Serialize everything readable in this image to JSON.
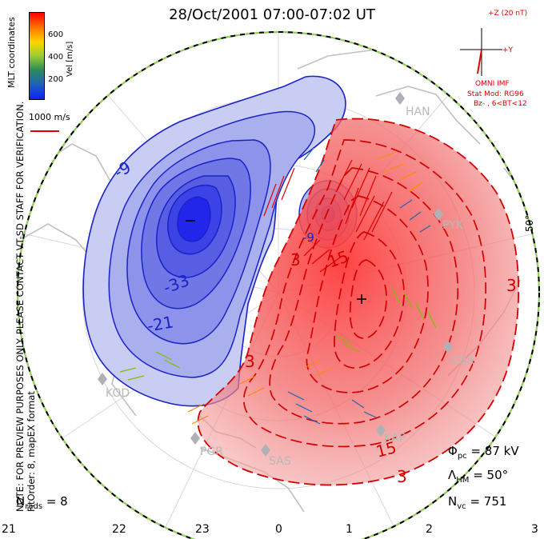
{
  "title": "28/Oct/2001 07:00-07:02 UT",
  "colorbar": {
    "label": "Vel [m/s]",
    "ticks": [
      "600",
      "400",
      "200"
    ],
    "colors": [
      "#ff0000",
      "#ff7a00",
      "#ffd400",
      "#9acd32",
      "#2e8b57",
      "#1e64b4",
      "#1020ff"
    ]
  },
  "scale_label": "1000 m/s",
  "imf": {
    "z_label": "+Z (20 nT)",
    "y_label": "+Y",
    "source": "OMNI IMF",
    "model": "Stat Mod: RG96",
    "condition": "Bz- , 6<BT<12"
  },
  "side_note": [
    "NOTE: FOR PREVIEW PURPOSES ONLY. PLEASE CONTACT VT-SD STAFF FOR VERIFICATION.",
    "FitOrder: 8, mapEX format"
  ],
  "corner_label": "MLT coordinates",
  "lat_label": "50°",
  "stations": [
    "HAN",
    "PYK",
    "GBR",
    "KOD",
    "PGR",
    "SAS",
    "KAP"
  ],
  "contour_labels": {
    "negative": [
      "-9",
      "-33",
      "-21",
      "-9"
    ],
    "positive": [
      "3",
      "15",
      "3",
      "3",
      "15",
      "3"
    ]
  },
  "stats": {
    "nrads_label": "N",
    "nrads_sub": "rads",
    "nrads_value": "= 8",
    "phi_label": "Φ",
    "phi_sub": "pc",
    "phi_value": "= 87 kV",
    "lambda_label": "Λ",
    "lambda_sub": "HM",
    "lambda_value": "= 50°",
    "nvc_label": "N",
    "nvc_sub": "vc",
    "nvc_value": "= 751"
  },
  "mlt_ticks": [
    "21",
    "22",
    "23",
    "0",
    "1",
    "2",
    "3"
  ]
}
